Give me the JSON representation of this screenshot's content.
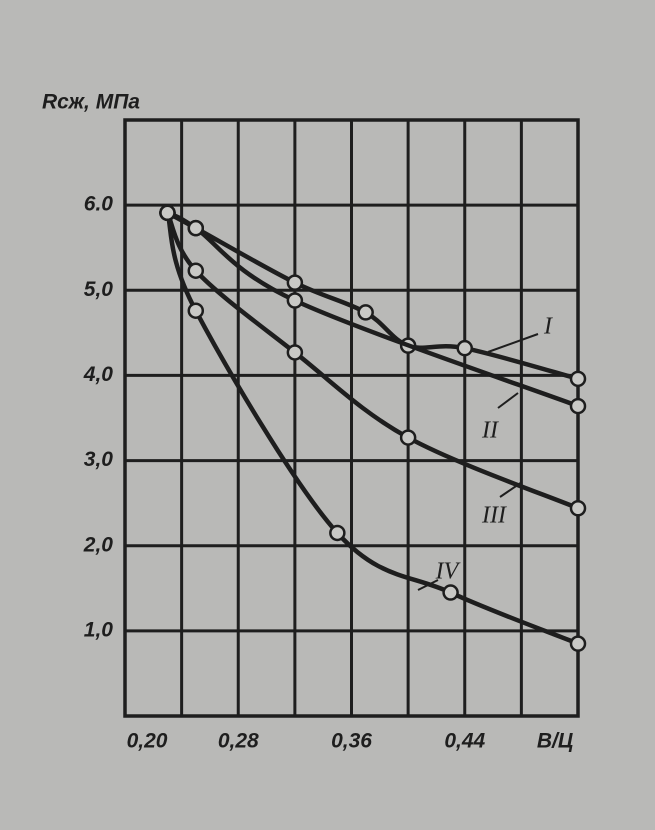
{
  "chart_data": {
    "type": "line",
    "y_label": "Rсж, МПа",
    "x_label": "В/Ц",
    "xlim": [
      0.2,
      0.52
    ],
    "ylim": [
      0,
      7
    ],
    "xticks": [
      {
        "value": 0.2,
        "label": "0,20"
      },
      {
        "value": 0.28,
        "label": "0,28"
      },
      {
        "value": 0.36,
        "label": "0,36"
      },
      {
        "value": 0.44,
        "label": "0,44"
      }
    ],
    "xgrid": [
      0.24,
      0.28,
      0.32,
      0.36,
      0.4,
      0.44,
      0.48,
      0.52
    ],
    "yticks": [
      {
        "value": 1,
        "label": "1,0"
      },
      {
        "value": 2,
        "label": "2,0"
      },
      {
        "value": 3,
        "label": "3,0"
      },
      {
        "value": 4,
        "label": "4,0"
      },
      {
        "value": 5,
        "label": "5,0"
      },
      {
        "value": 6,
        "label": "6.0"
      }
    ],
    "grid": true,
    "color": "#1e1e1e",
    "series": [
      {
        "name": "I",
        "x": [
          0.23,
          0.25,
          0.32,
          0.37,
          0.4,
          0.44,
          0.52
        ],
        "values": [
          5.91,
          5.73,
          5.09,
          4.74,
          4.35,
          4.32,
          3.96
        ]
      },
      {
        "name": "II",
        "x": [
          0.23,
          0.25,
          0.32,
          0.52
        ],
        "values": [
          5.91,
          5.73,
          4.88,
          3.64
        ]
      },
      {
        "name": "III",
        "x": [
          0.23,
          0.25,
          0.32,
          0.4,
          0.52
        ],
        "values": [
          5.91,
          5.23,
          4.27,
          3.27,
          2.44
        ]
      },
      {
        "name": "IV",
        "x": [
          0.23,
          0.25,
          0.35,
          0.43,
          0.52
        ],
        "values": [
          5.91,
          4.76,
          2.15,
          1.45,
          0.85
        ]
      }
    ]
  }
}
